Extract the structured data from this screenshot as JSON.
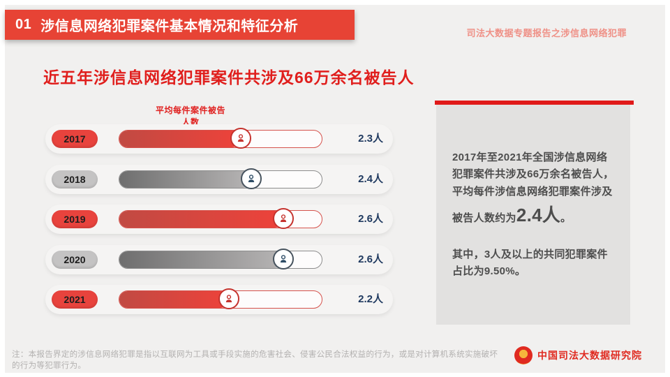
{
  "header": {
    "section_number": "01",
    "section_title": "涉信息网络犯罪案件基本情况和特征分析",
    "report_label": "司法大数据专题报告之涉信息网络犯罪"
  },
  "main": {
    "title": "近五年涉信息网络犯罪案件共涉及66万余名被告人"
  },
  "chart_data": {
    "type": "bar",
    "title": "平均每件案件被告人数",
    "categories": [
      "2017",
      "2018",
      "2019",
      "2020",
      "2021"
    ],
    "values": [
      2.3,
      2.4,
      2.6,
      2.6,
      2.2
    ],
    "unit": "人",
    "value_labels": [
      "2.3人",
      "2.4人",
      "2.6人",
      "2.6人",
      "2.2人"
    ],
    "fill_percent": [
      60,
      65,
      81,
      81,
      54
    ],
    "row_themes": [
      "red",
      "gray",
      "red",
      "gray",
      "red"
    ],
    "legend_position": "none",
    "grid": false,
    "colors": {
      "red": "#e8433d",
      "gray": "#9a9a9a",
      "value_text": "#203a60"
    }
  },
  "panel": {
    "paragraph1_before": "2017年至2021年全国涉信息网络犯罪案件共涉及66万余名被告人，平均每件涉信息网络犯罪案件涉及被告人数约为",
    "highlight": "2.4人",
    "paragraph1_after": "。",
    "paragraph2": "其中，3人及以上的共同犯罪案件占比为9.50%。",
    "accent_color": "#e01919"
  },
  "footer": {
    "note": "注：本报告界定的涉信息网络犯罪是指以互联网为工具或手段实施的危害社会、侵害公民合法权益的行为，或是对计算机系统实施破坏的行为等犯罪行为。",
    "org_name": "中国司法大数据研究院",
    "emblem_icon": "national-emblem-icon"
  }
}
